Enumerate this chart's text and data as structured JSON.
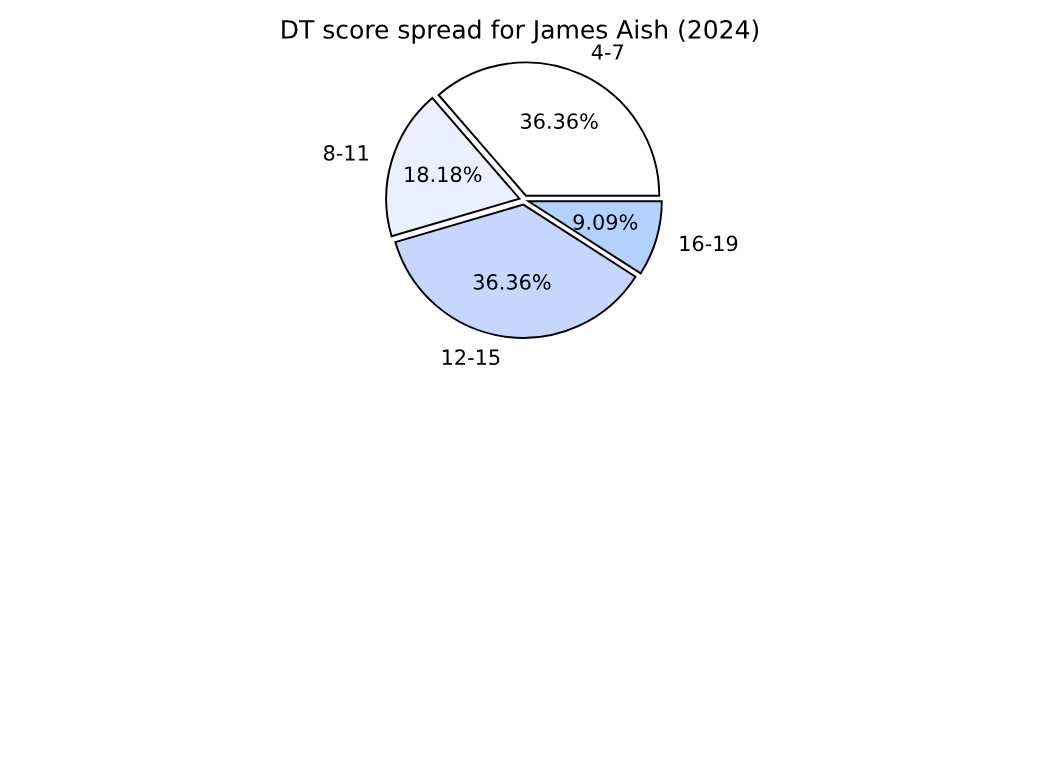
{
  "chart_data": {
    "type": "pie",
    "title": "DT score spread for James Aish (2024)",
    "categories": [
      "4-7",
      "8-11",
      "12-15",
      "16-19"
    ],
    "values": [
      36.36,
      18.18,
      36.36,
      9.09
    ],
    "value_labels": [
      "36.36%",
      "18.18%",
      "36.36%",
      "9.09%"
    ],
    "colors": [
      "#ffffff",
      "#eaf0ff",
      "#c6d6ff",
      "#b3d1ff"
    ]
  }
}
